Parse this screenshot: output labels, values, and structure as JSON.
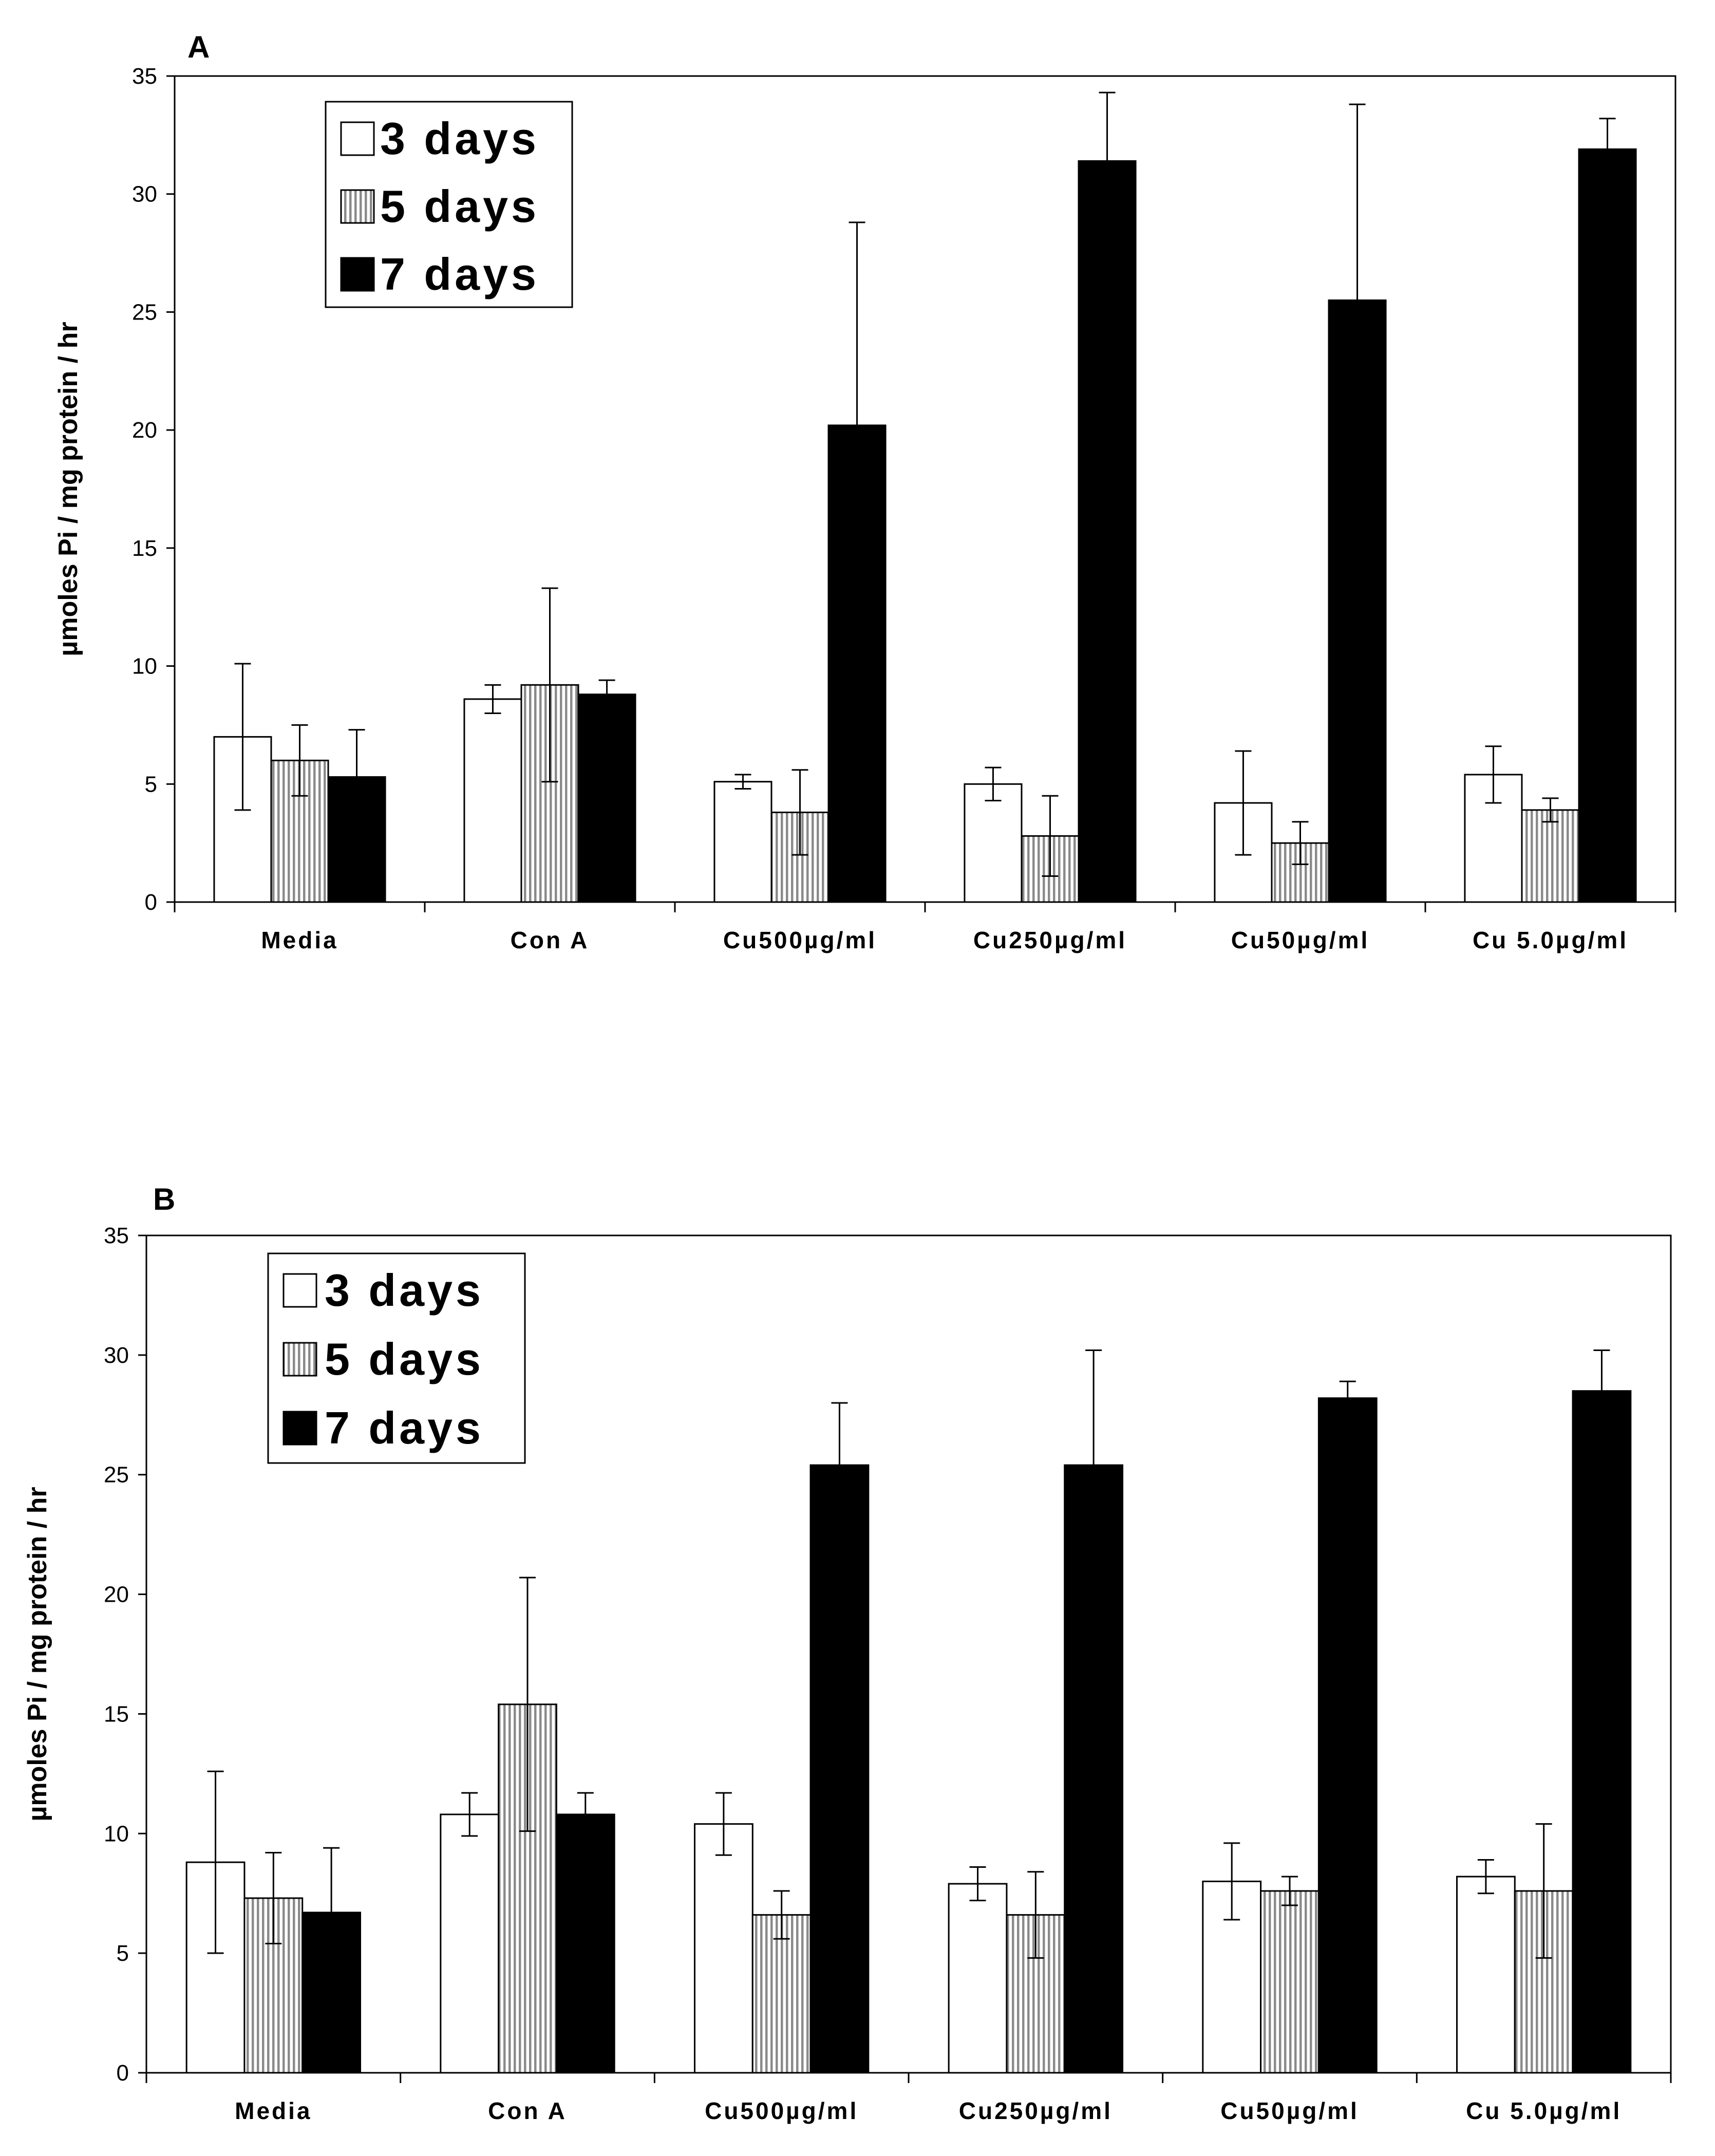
{
  "chart_data": [
    {
      "type": "bar",
      "panel_label": "A",
      "ylabel": "µmoles Pi / mg protein / hr",
      "ylim": [
        0,
        35
      ],
      "yticks": [
        "0",
        "5",
        "10",
        "15",
        "20",
        "25",
        "30",
        "35"
      ],
      "categories": [
        "Media",
        "Con A",
        "Cu500µg/ml",
        "Cu250µg/ml",
        "Cu50µg/ml",
        "Cu 5.0µg/ml"
      ],
      "legend_position": "top-left",
      "series": [
        {
          "name": "3 days",
          "fill": "white",
          "values": [
            7.0,
            8.6,
            5.1,
            5.0,
            4.2,
            5.4
          ],
          "errors": [
            3.1,
            0.6,
            0.3,
            0.7,
            2.2,
            1.2
          ]
        },
        {
          "name": "5 days",
          "fill": "striped",
          "values": [
            6.0,
            9.2,
            3.8,
            2.8,
            2.5,
            3.9
          ],
          "errors": [
            1.5,
            4.1,
            1.8,
            1.7,
            0.9,
            0.5
          ]
        },
        {
          "name": "7 days",
          "fill": "black",
          "values": [
            5.3,
            8.8,
            20.2,
            31.4,
            25.5,
            31.9
          ],
          "errors": [
            2.0,
            0.6,
            8.6,
            2.9,
            8.3,
            1.3
          ]
        }
      ]
    },
    {
      "type": "bar",
      "panel_label": "B",
      "ylabel": "µmoles Pi / mg protein / hr",
      "ylim": [
        0,
        35
      ],
      "yticks": [
        "0",
        "5",
        "10",
        "15",
        "20",
        "25",
        "30",
        "35"
      ],
      "categories": [
        "Media",
        "Con A",
        "Cu500µg/ml",
        "Cu250µg/ml",
        "Cu50µg/ml",
        "Cu 5.0µg/ml"
      ],
      "legend_position": "top-left",
      "series": [
        {
          "name": "3 days",
          "fill": "white",
          "values": [
            8.8,
            10.8,
            10.4,
            7.9,
            8.0,
            8.2
          ],
          "errors": [
            3.8,
            0.9,
            1.3,
            0.7,
            1.6,
            0.7
          ]
        },
        {
          "name": "5 days",
          "fill": "striped",
          "values": [
            7.3,
            15.4,
            6.6,
            6.6,
            7.6,
            7.6
          ],
          "errors": [
            1.9,
            5.3,
            1.0,
            1.8,
            0.6,
            2.8
          ]
        },
        {
          "name": "7 days",
          "fill": "black",
          "values": [
            6.7,
            10.8,
            25.4,
            25.4,
            28.2,
            28.5
          ],
          "errors": [
            2.7,
            0.9,
            2.6,
            4.8,
            0.7,
            1.7
          ]
        }
      ]
    }
  ]
}
